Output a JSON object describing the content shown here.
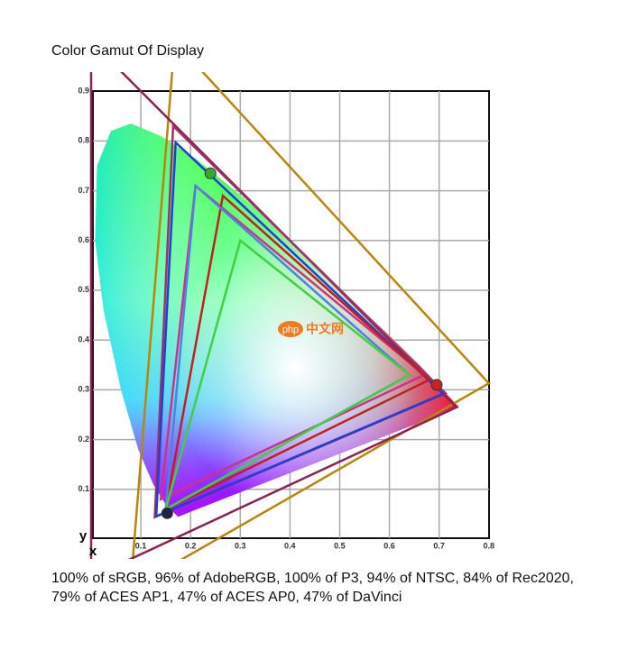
{
  "title": "Color Gamut Of Display",
  "figure": {
    "yticks": [
      "0.9",
      "0.8",
      "0.7",
      "0.6",
      "0.5",
      "0.4",
      "0.3",
      "0.2",
      "0.1"
    ],
    "xticks": [
      "0.1",
      "0.2",
      "0.3",
      "0.4",
      "0.5",
      "0.6",
      "0.7",
      "0.8"
    ],
    "x_label": "x",
    "y_label": "y",
    "watermark_logo": "php",
    "watermark_text": "中文网"
  },
  "caption": "100% of sRGB, 96% of AdobeRGB, 100% of P3, 94% of NTSC, 84% of Rec2020, 79% of ACES AP1, 47% of ACES AP0, 47% of DaVinci"
}
